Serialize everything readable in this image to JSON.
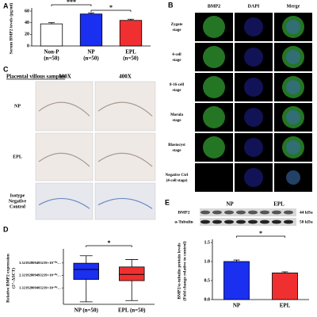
{
  "chart_data": [
    {
      "type": "bar",
      "panel": "A",
      "ylabel": [
        "Serum BMP2 levels (pg/ml)"
      ],
      "categories": [
        "Non-P",
        "NP",
        "EPL"
      ],
      "n_labels": [
        "(n=50)",
        "(n=50)",
        "(n=50)"
      ],
      "values": [
        38,
        55,
        44
      ],
      "errors": [
        2,
        2,
        2
      ],
      "colors": [
        "#ffffff",
        "#1a2ff0",
        "#f03030"
      ],
      "ylim": [
        0,
        60
      ],
      "yticks": [
        0,
        20,
        40,
        60
      ],
      "significance": [
        {
          "from": 0,
          "to": 1,
          "label": "***"
        },
        {
          "from": 1,
          "to": 2,
          "label": "*"
        }
      ]
    },
    {
      "type": "box",
      "panel": "D",
      "ylabel": [
        "Relative BMP2 expression",
        "(2^-ΔΔCT)"
      ],
      "categories": [
        "NP (n=50)",
        "EPL (n=50)"
      ],
      "colors": [
        "#1a2ff0",
        "#f03030"
      ],
      "boxes": [
        {
          "whislo": 2e-07,
          "q1": 2e-06,
          "med": 2.8e-06,
          "q3": 3.3e-06,
          "whishi": 3.9e-06
        },
        {
          "whislo": 3e-07,
          "q1": 1.9e-06,
          "med": 2.4e-06,
          "q3": 3e-06,
          "whishi": 3.6e-06
        }
      ],
      "ylim": [
        0,
        4.2e-06
      ],
      "yticks": [
        {
          "value": 3.32192809493219e-06,
          "label": "3.32192809493219×10⁻⁰⁶…"
        },
        {
          "value": 2.32192809493219e-06,
          "label": "2.32192809493219×10⁻⁰⁶…"
        },
        {
          "value": 1.32192809493219e-06,
          "label": "1.32192809493219×10⁻⁰⁶…"
        }
      ],
      "significance": [
        {
          "from": 0,
          "to": 1,
          "label": "*"
        }
      ]
    },
    {
      "type": "bar",
      "panel": "E",
      "ylabel": [
        "BMP2/α-tubulin protein levels",
        "(Fold change relative to control)"
      ],
      "categories": [
        "NP",
        "EPL"
      ],
      "values": [
        1.0,
        0.7
      ],
      "errors": [
        0.04,
        0.03
      ],
      "colors": [
        "#1a2ff0",
        "#f03030"
      ],
      "ylim": [
        0,
        1.5
      ],
      "yticks": [
        {
          "value": 0,
          "label": "0.0"
        },
        {
          "value": 0.5,
          "label": "0.5"
        },
        {
          "value": 1,
          "label": "1.0"
        },
        {
          "value": 1.5,
          "label": "1.5"
        }
      ],
      "significance": [
        {
          "from": 0,
          "to": 1,
          "label": "*"
        }
      ]
    }
  ],
  "figure": {
    "B": {
      "letter": "B",
      "columns": [
        "BMP2",
        "DAPI",
        "Merge"
      ],
      "rows": [
        [
          "Zygote",
          "stage"
        ],
        [
          "4-cell",
          "stage"
        ],
        [
          "8-16-cell",
          "stage"
        ],
        [
          "Morula",
          "stage"
        ],
        [
          "Blastocyst",
          "stage"
        ],
        [
          "Negative Ctrl",
          "(4-cell stage)"
        ]
      ]
    },
    "C": {
      "letter": "C",
      "title": "Placental villous samples",
      "columns": [
        "100X",
        "400X"
      ],
      "rows": [
        [
          "NP"
        ],
        [
          "EPL"
        ],
        [
          "Isotype",
          "Negative",
          "Control"
        ]
      ]
    },
    "E": {
      "groups": [
        "NP",
        "EPL"
      ],
      "bands": [
        "BMP2",
        "α-Tubulin"
      ],
      "sizes": [
        "44 kDa",
        "50 kDa"
      ]
    }
  }
}
